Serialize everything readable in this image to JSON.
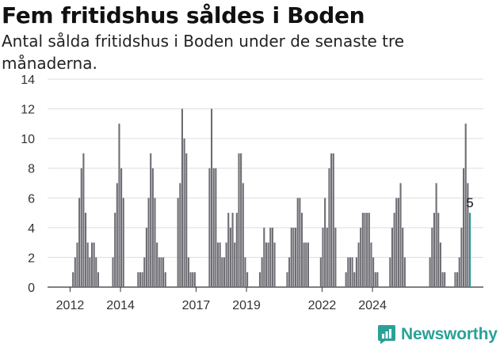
{
  "title": "Fem fritidshus såldes i Boden",
  "subtitle": "Antal sålda fritidshus i Boden under de senaste tre månaderna.",
  "brand": {
    "name": "Newsworthy",
    "color": "#2aa198"
  },
  "chart_data": {
    "type": "bar",
    "ylim": [
      0,
      14
    ],
    "yticks": [
      0,
      2,
      4,
      6,
      8,
      10,
      12,
      14
    ],
    "xtick_labels": [
      "2012",
      "2014",
      "2017",
      "2019",
      "2022",
      "2024"
    ],
    "xtick_years": [
      2012,
      2014,
      2017,
      2019,
      2022,
      2024
    ],
    "grid": true,
    "colors": {
      "bar": "#6e6d73",
      "highlight": "#1f9a95",
      "grid": "#dddddd"
    },
    "highlight_label": "5",
    "start": "2011-10",
    "values": [
      0,
      0,
      0,
      0,
      1,
      2,
      3,
      6,
      8,
      9,
      5,
      3,
      2,
      3,
      3,
      2,
      1,
      0,
      0,
      0,
      0,
      0,
      0,
      2,
      5,
      7,
      11,
      8,
      6,
      0,
      0,
      0,
      0,
      0,
      0,
      1,
      1,
      1,
      2,
      4,
      6,
      9,
      8,
      6,
      3,
      2,
      2,
      2,
      1,
      0,
      0,
      0,
      0,
      0,
      6,
      7,
      12,
      10,
      9,
      2,
      1,
      1,
      1,
      0,
      0,
      0,
      0,
      0,
      0,
      8,
      12,
      8,
      8,
      3,
      3,
      2,
      2,
      3,
      5,
      4,
      5,
      3,
      5,
      9,
      9,
      7,
      2,
      1,
      0,
      0,
      0,
      0,
      0,
      1,
      2,
      4,
      3,
      3,
      4,
      4,
      3,
      0,
      0,
      0,
      0,
      0,
      1,
      2,
      4,
      4,
      4,
      6,
      6,
      5,
      3,
      3,
      3,
      0,
      0,
      0,
      0,
      0,
      2,
      4,
      6,
      4,
      8,
      9,
      9,
      4,
      0,
      0,
      0,
      0,
      1,
      2,
      2,
      2,
      1,
      2,
      3,
      4,
      5,
      5,
      5,
      5,
      3,
      2,
      1,
      1,
      0,
      0,
      0,
      0,
      0,
      2,
      4,
      5,
      6,
      6,
      7,
      4,
      2,
      0,
      0,
      0,
      0,
      0,
      0,
      0,
      0,
      0,
      0,
      0,
      2,
      4,
      5,
      7,
      5,
      3,
      1,
      1,
      0,
      0,
      0,
      0,
      1,
      1,
      2,
      4,
      8,
      11,
      7,
      5
    ]
  }
}
